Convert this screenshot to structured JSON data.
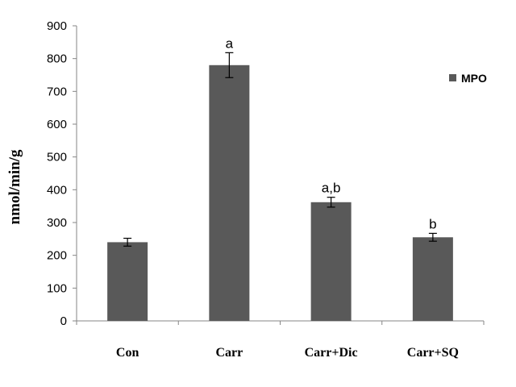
{
  "chart_data": {
    "type": "bar",
    "categories": [
      "Con",
      "Carr",
      "Carr+Dic",
      "Carr+SQ"
    ],
    "series": [
      {
        "name": "MPO",
        "values": [
          240,
          780,
          362,
          255
        ],
        "errors": [
          12,
          38,
          15,
          12
        ],
        "color": "#595959"
      }
    ],
    "annotations": [
      "",
      "a",
      "a,b",
      "b"
    ],
    "ylabel": "nmol/min/g",
    "ylim": [
      0,
      900
    ],
    "yticks": [
      0,
      100,
      200,
      300,
      400,
      500,
      600,
      700,
      800,
      900
    ],
    "grid": false,
    "legend": "right"
  }
}
